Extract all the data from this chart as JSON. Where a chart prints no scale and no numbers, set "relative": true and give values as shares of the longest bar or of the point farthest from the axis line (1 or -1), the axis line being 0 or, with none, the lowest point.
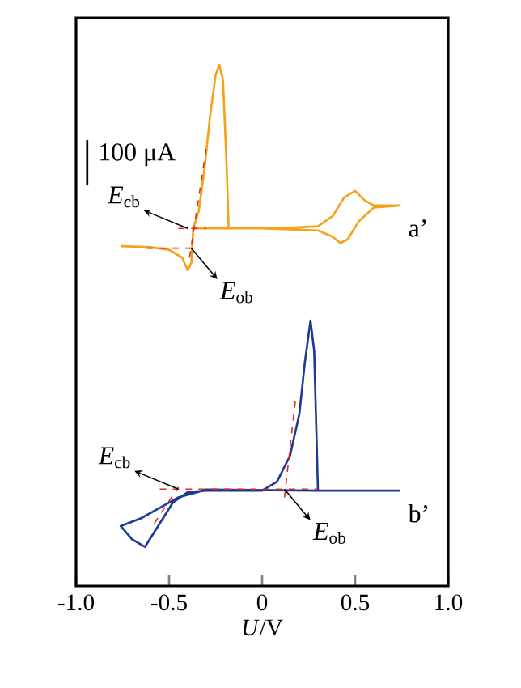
{
  "chart_data": {
    "type": "line",
    "relative": true,
    "xlabel": "*U*/V",
    "xlim": [
      -1.0,
      1.0
    ],
    "xticks": [
      {
        "value": -1.0,
        "label": "-1.0"
      },
      {
        "value": -0.5,
        "label": "-0.5"
      },
      0,
      0.5,
      {
        "value": 1.0,
        "label": "1.0"
      }
    ],
    "series": [
      {
        "name": "a’",
        "color": "#f5a21b",
        "x": [
          -0.76,
          -0.6,
          -0.5,
          -0.43,
          -0.4,
          -0.38,
          -0.37,
          -0.34,
          -0.31,
          -0.28,
          -0.25,
          -0.23,
          -0.21,
          -0.19,
          -0.18,
          0.1,
          0.3,
          0.38,
          0.44,
          0.5,
          0.55,
          0.6,
          0.74,
          0.6,
          0.52,
          0.46,
          0.42,
          0.38,
          0.3,
          0.0,
          -0.37
        ],
        "values": [
          0.652,
          0.65,
          0.645,
          0.63,
          0.606,
          0.62,
          0.686,
          0.72,
          0.8,
          0.9,
          0.98,
          1.0,
          0.97,
          0.8,
          0.686,
          0.686,
          0.69,
          0.71,
          0.745,
          0.758,
          0.74,
          0.73,
          0.73,
          0.726,
          0.7,
          0.665,
          0.658,
          0.67,
          0.682,
          0.686,
          0.686
        ]
      },
      {
        "name": "b’",
        "color": "#1f3a93",
        "x": [
          0.74,
          0.3,
          -0.3,
          -0.45,
          -0.55,
          -0.65,
          -0.76,
          -0.7,
          -0.63,
          -0.55,
          -0.48,
          -0.4,
          -0.3,
          0.0,
          0.08,
          0.15,
          0.2,
          0.23,
          0.26,
          0.28,
          0.3
        ],
        "values": [
          0.183,
          0.183,
          0.185,
          0.17,
          0.15,
          0.13,
          0.115,
          0.09,
          0.075,
          0.12,
          0.16,
          0.18,
          0.183,
          0.183,
          0.2,
          0.25,
          0.33,
          0.43,
          0.509,
          0.45,
          0.183
        ]
      },
      {
        "color": "#e8251d",
        "line_style": "dashed",
        "x": [
          -0.45,
          -0.3
        ],
        "values": [
          0.686,
          0.686
        ]
      },
      {
        "color": "#e8251d",
        "line_style": "dashed",
        "x": [
          -0.62,
          -0.38
        ],
        "values": [
          0.648,
          0.648
        ]
      },
      {
        "color": "#e8251d",
        "line_style": "dashed",
        "x": [
          -0.39,
          -0.3
        ],
        "values": [
          0.63,
          0.84
        ]
      },
      {
        "color": "#e8251d",
        "line_style": "dashed",
        "x": [
          -0.55,
          0.3
        ],
        "values": [
          0.186,
          0.186
        ]
      },
      {
        "color": "#e8251d",
        "line_style": "dashed",
        "x": [
          -0.58,
          -0.45
        ],
        "values": [
          0.12,
          0.19
        ]
      },
      {
        "color": "#e8251d",
        "line_style": "dashed",
        "x": [
          0.12,
          0.18
        ],
        "values": [
          0.17,
          0.36
        ]
      }
    ],
    "annotations": [
      "100 μA",
      {
        "text": "*E*$_{cb}$",
        "x": -0.4,
        "y": 0.686
      },
      {
        "text": "*E*$_{ob}$",
        "x": -0.38,
        "y": 0.648
      },
      {
        "text": "*E*$_{cb}$",
        "x": -0.45,
        "y": 0.186
      },
      {
        "text": "*E*$_{ob}$",
        "x": 0.12,
        "y": 0.186
      }
    ]
  }
}
